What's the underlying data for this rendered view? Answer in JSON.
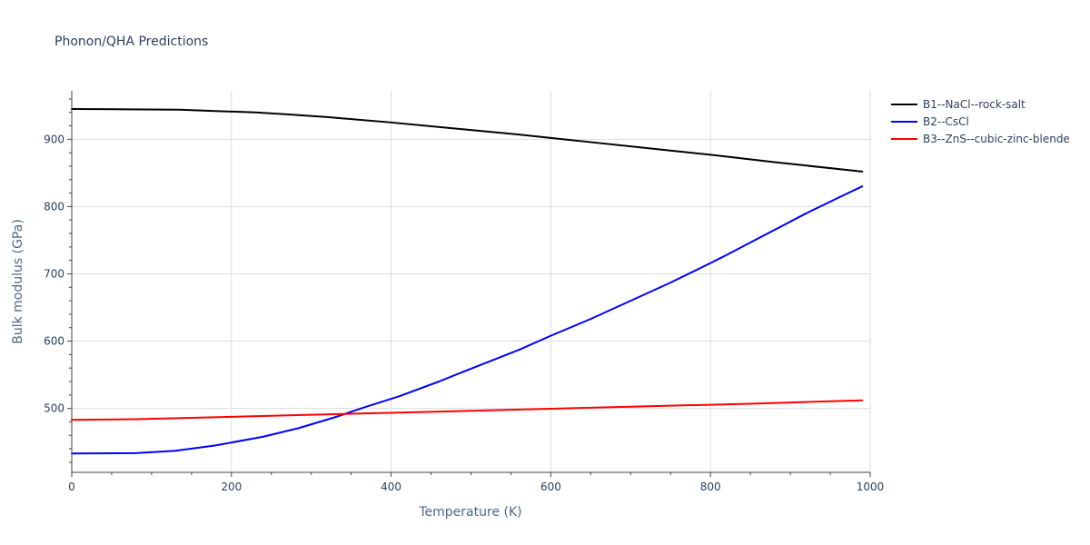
{
  "chart_data": {
    "type": "line",
    "title": "Phonon/QHA Predictions",
    "xlabel": "Temperature (K)",
    "ylabel": "Bulk modulus (GPa)",
    "xlim": [
      0,
      1000
    ],
    "ylim": [
      405,
      972
    ],
    "xticks": [
      0,
      200,
      400,
      600,
      800,
      1000
    ],
    "yticks": [
      500,
      600,
      700,
      800,
      900
    ],
    "grid": true,
    "legend": "top-right outside",
    "series": [
      {
        "name": "B1--NaCl--rock-salt",
        "color": "#000000",
        "x": [
          0,
          70,
          135,
          180,
          230,
          270,
          320,
          400,
          480,
          560,
          640,
          720,
          800,
          880,
          990
        ],
        "y": [
          945,
          944.5,
          944,
          942,
          940,
          937,
          933,
          925,
          916,
          907,
          897,
          887,
          877,
          866,
          852
        ]
      },
      {
        "name": "B2--CsCl",
        "color": "#0000ff",
        "x": [
          0,
          80,
          130,
          180,
          240,
          285,
          330,
          370,
          410,
          460,
          500,
          560,
          600,
          650,
          700,
          750,
          800,
          810,
          820,
          870,
          920,
          960,
          990
        ],
        "y": [
          433,
          433.5,
          437,
          445,
          458,
          471,
          487,
          503,
          518,
          540,
          559,
          587,
          608,
          633,
          660,
          687,
          716,
          722,
          728,
          759,
          790,
          813,
          830
        ]
      },
      {
        "name": "B3--ZnS--cubic-zinc-blende",
        "color": "#ff0000",
        "x": [
          0,
          80,
          150,
          250,
          350,
          450,
          550,
          650,
          750,
          850,
          990
        ],
        "y": [
          483,
          484,
          486,
          489,
          492,
          495,
          498,
          501,
          504,
          507,
          512
        ]
      }
    ]
  }
}
